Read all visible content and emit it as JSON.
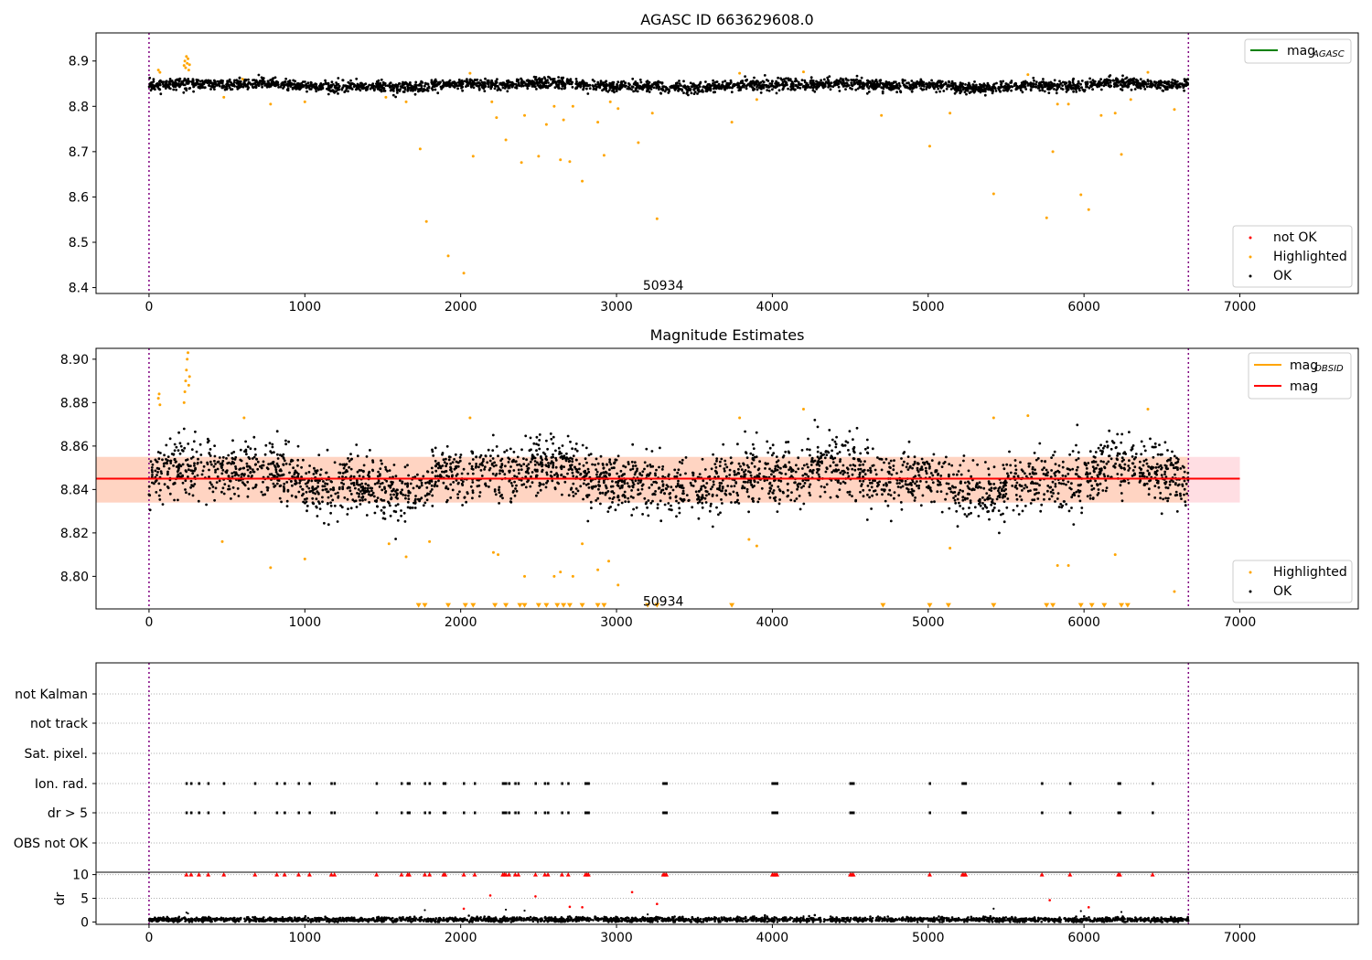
{
  "chart_data": [
    {
      "type": "scatter",
      "title": "AGASC ID 663629608.0",
      "xlim": [
        -340,
        7760
      ],
      "ylim": [
        8.387,
        8.962
      ],
      "xticks": [
        0,
        1000,
        2000,
        3000,
        4000,
        5000,
        6000,
        7000
      ],
      "yticks": [
        8.4,
        8.5,
        8.6,
        8.7,
        8.8,
        8.9
      ],
      "vlines": [
        0,
        6670
      ],
      "annotation": {
        "text": "50934",
        "x": 3300,
        "y": 8.405
      },
      "legend_lines": [
        {
          "label": "mag",
          "sub": "AGASC",
          "color": "#008000"
        }
      ],
      "legend_points": [
        {
          "label": "not OK",
          "color": "#ff0000"
        },
        {
          "label": "Highlighted",
          "color": "#ffa500"
        },
        {
          "label": "OK",
          "color": "#000000"
        }
      ],
      "series": [
        {
          "name": "OK",
          "color": "#000000",
          "x_range": [
            0,
            6670
          ],
          "count": 3000,
          "base": 8.846,
          "noise": 0.006
        },
        {
          "name": "Highlighted",
          "color": "#ffa500",
          "points": [
            [
              60,
              8.88
            ],
            [
              70,
              8.875
            ],
            [
              225,
              8.89
            ],
            [
              230,
              8.9
            ],
            [
              235,
              8.885
            ],
            [
              240,
              8.91
            ],
            [
              245,
              8.895
            ],
            [
              250,
              8.905
            ],
            [
              255,
              8.88
            ],
            [
              260,
              8.892
            ],
            [
              480,
              8.82
            ],
            [
              600,
              8.86
            ],
            [
              780,
              8.805
            ],
            [
              1000,
              8.81
            ],
            [
              1520,
              8.82
            ],
            [
              1650,
              8.81
            ],
            [
              1740,
              8.706
            ],
            [
              1780,
              8.546
            ],
            [
              1920,
              8.47
            ],
            [
              2020,
              8.432
            ],
            [
              2060,
              8.873
            ],
            [
              2080,
              8.69
            ],
            [
              2200,
              8.81
            ],
            [
              2230,
              8.775
            ],
            [
              2290,
              8.726
            ],
            [
              2390,
              8.676
            ],
            [
              2410,
              8.78
            ],
            [
              2500,
              8.69
            ],
            [
              2550,
              8.76
            ],
            [
              2600,
              8.8
            ],
            [
              2640,
              8.682
            ],
            [
              2660,
              8.77
            ],
            [
              2700,
              8.678
            ],
            [
              2720,
              8.8
            ],
            [
              2780,
              8.635
            ],
            [
              2880,
              8.765
            ],
            [
              2920,
              8.692
            ],
            [
              2960,
              8.81
            ],
            [
              3010,
              8.795
            ],
            [
              3140,
              8.72
            ],
            [
              3230,
              8.785
            ],
            [
              3260,
              8.552
            ],
            [
              3740,
              8.765
            ],
            [
              3790,
              8.873
            ],
            [
              3900,
              8.815
            ],
            [
              4200,
              8.876
            ],
            [
              4700,
              8.78
            ],
            [
              5010,
              8.712
            ],
            [
              5140,
              8.785
            ],
            [
              5420,
              8.607
            ],
            [
              5640,
              8.87
            ],
            [
              5760,
              8.554
            ],
            [
              5800,
              8.7
            ],
            [
              5830,
              8.805
            ],
            [
              5900,
              8.805
            ],
            [
              5980,
              8.605
            ],
            [
              6030,
              8.572
            ],
            [
              6110,
              8.78
            ],
            [
              6200,
              8.785
            ],
            [
              6240,
              8.694
            ],
            [
              6300,
              8.815
            ],
            [
              6410,
              8.875
            ],
            [
              6580,
              8.793
            ]
          ]
        }
      ]
    },
    {
      "type": "scatter",
      "title": "Magnitude Estimates",
      "xlim": [
        -340,
        7760
      ],
      "ylim": [
        8.785,
        8.905
      ],
      "xticks": [
        0,
        1000,
        2000,
        3000,
        4000,
        5000,
        6000,
        7000
      ],
      "yticks": [
        8.8,
        8.82,
        8.84,
        8.86,
        8.88,
        8.9
      ],
      "ytick_labels": [
        "8.80",
        "8.82",
        "8.84",
        "8.86",
        "8.88",
        "8.90"
      ],
      "vlines": [
        0,
        6670
      ],
      "mean_line": {
        "value": 8.845,
        "color": "#ff0000",
        "x_range": [
          -340,
          7000
        ]
      },
      "band": {
        "low": 8.834,
        "high": 8.855,
        "color": "#ffb6c1"
      },
      "band_obsid": {
        "low": 8.834,
        "high": 8.855,
        "color": "#ffc89a",
        "x_range": [
          -340,
          6670
        ]
      },
      "annotation": {
        "text": "50934",
        "x": 3300,
        "y": 8.7885
      },
      "legend_lines": [
        {
          "label": "mag",
          "sub": "OBSID",
          "color": "#ffa500"
        },
        {
          "label": "mag",
          "sub": "",
          "color": "#ff0000"
        }
      ],
      "legend_points": [
        {
          "label": "Highlighted",
          "color": "#ffa500"
        },
        {
          "label": "OK",
          "color": "#000000"
        }
      ],
      "series": [
        {
          "name": "OK",
          "color": "#000000",
          "x_range": [
            0,
            6670
          ],
          "count": 3000,
          "base": 8.845,
          "noise": 0.0065
        },
        {
          "name": "Highlighted",
          "color": "#ffa500",
          "points": [
            [
              60,
              8.882
            ],
            [
              65,
              8.884
            ],
            [
              70,
              8.879
            ],
            [
              225,
              8.88
            ],
            [
              230,
              8.885
            ],
            [
              235,
              8.89
            ],
            [
              240,
              8.895
            ],
            [
              245,
              8.9
            ],
            [
              250,
              8.903
            ],
            [
              255,
              8.888
            ],
            [
              260,
              8.892
            ],
            [
              470,
              8.816
            ],
            [
              610,
              8.873
            ],
            [
              780,
              8.804
            ],
            [
              1000,
              8.808
            ],
            [
              1540,
              8.815
            ],
            [
              1650,
              8.809
            ],
            [
              1800,
              8.816
            ],
            [
              2060,
              8.873
            ],
            [
              2210,
              8.811
            ],
            [
              2240,
              8.81
            ],
            [
              2410,
              8.8
            ],
            [
              2600,
              8.8
            ],
            [
              2640,
              8.802
            ],
            [
              2720,
              8.8
            ],
            [
              2780,
              8.815
            ],
            [
              2880,
              8.803
            ],
            [
              2950,
              8.807
            ],
            [
              3010,
              8.796
            ],
            [
              3790,
              8.873
            ],
            [
              3850,
              8.817
            ],
            [
              3900,
              8.814
            ],
            [
              4200,
              8.877
            ],
            [
              5140,
              8.813
            ],
            [
              5420,
              8.873
            ],
            [
              5640,
              8.874
            ],
            [
              5830,
              8.805
            ],
            [
              5900,
              8.805
            ],
            [
              6200,
              8.81
            ],
            [
              6410,
              8.877
            ],
            [
              6580,
              8.793
            ]
          ]
        },
        {
          "name": "Clipped",
          "color": "#ffa500",
          "marker": "triangle-down",
          "y": 8.786,
          "x": [
            1730,
            1770,
            1920,
            2030,
            2080,
            2220,
            2290,
            2380,
            2410,
            2500,
            2550,
            2620,
            2660,
            2700,
            2780,
            2880,
            2920,
            3200,
            3260,
            3740,
            4710,
            5010,
            5130,
            5420,
            5760,
            5800,
            5980,
            6050,
            6130,
            6240,
            6280
          ]
        }
      ]
    },
    {
      "type": "scatter",
      "title": "",
      "xlim": [
        -340,
        7760
      ],
      "categories": [
        "not Kalman",
        "not track",
        "Sat. pixel.",
        "Ion. rad.",
        "dr > 5",
        "OBS not OK"
      ],
      "vlines": [
        0,
        6670
      ],
      "flag_x": [
        240,
        270,
        320,
        380,
        480,
        680,
        820,
        870,
        960,
        1030,
        1170,
        1190,
        1460,
        1620,
        1660,
        1670,
        1770,
        1800,
        1890,
        1900,
        2020,
        2090,
        2270,
        2280,
        2290,
        2310,
        2350,
        2370,
        2480,
        2540,
        2560,
        2650,
        2690,
        2800,
        2810,
        2820,
        3300,
        3310,
        3320,
        4000,
        4010,
        4020,
        4030,
        4500,
        4510,
        4520,
        5010,
        5220,
        5230,
        5240,
        5730,
        5910,
        6220,
        6230,
        6440
      ]
    },
    {
      "type": "scatter",
      "title": "",
      "xlim": [
        -340,
        7760
      ],
      "ylim": [
        -0.5,
        10.5
      ],
      "yticks": [
        0,
        5,
        10
      ],
      "ylabel": "dr",
      "xticks": [
        0,
        1000,
        2000,
        3000,
        4000,
        5000,
        6000,
        7000
      ],
      "vlines": [
        0,
        6670
      ],
      "series": [
        {
          "name": "dr",
          "color": "#000000",
          "x_range": [
            0,
            6670
          ],
          "count": 2500,
          "base": 0.5,
          "noise": 0.25
        },
        {
          "name": "dr clipped",
          "color": "#ff0000",
          "marker": "triangle-up",
          "y": 10
        },
        {
          "name": "dr outliers",
          "color": "#ff0000",
          "points": [
            [
              2020,
              2.8
            ],
            [
              2190,
              5.6
            ],
            [
              2480,
              5.4
            ],
            [
              2700,
              3.2
            ],
            [
              2780,
              3.1
            ],
            [
              3100,
              6.3
            ],
            [
              3260,
              3.8
            ],
            [
              5780,
              4.6
            ],
            [
              6030,
              3.1
            ]
          ]
        },
        {
          "name": "dr moderate",
          "color": "#000000",
          "points": [
            [
              1770,
              2.5
            ],
            [
              2290,
              2.6
            ],
            [
              2410,
              2.4
            ],
            [
              3200,
              1.6
            ],
            [
              4200,
              1.2
            ],
            [
              5420,
              2.8
            ],
            [
              5980,
              2.3
            ],
            [
              6240,
              2.1
            ],
            [
              240,
              2.0
            ],
            [
              250,
              1.8
            ]
          ]
        }
      ]
    }
  ]
}
